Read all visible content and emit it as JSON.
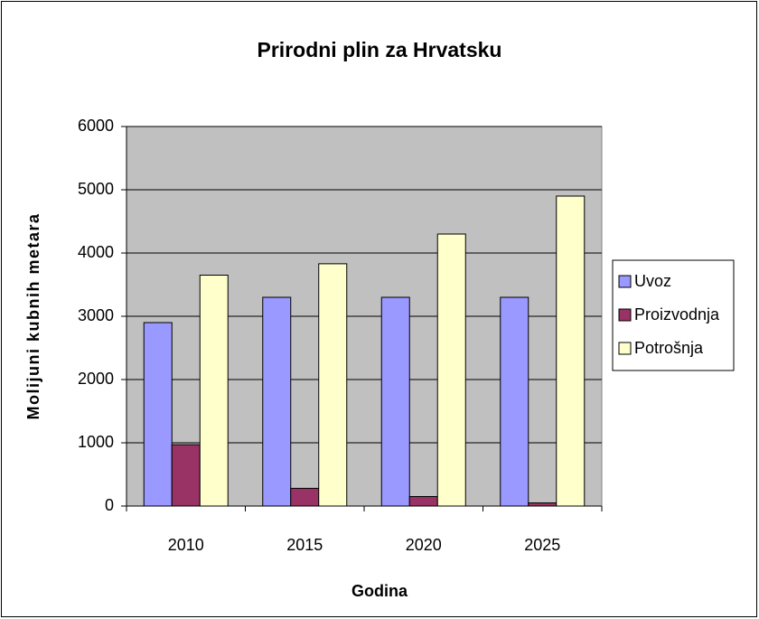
{
  "chart_data": {
    "type": "bar",
    "title": "Prirodni plin za Hrvatsku",
    "x_label": "Godina",
    "y_label": "Molijuni kubnih metara",
    "categories": [
      "2010",
      "2015",
      "2020",
      "2025"
    ],
    "series": [
      {
        "name": "Uvoz",
        "color": "#9999ff",
        "values": [
          2900,
          3300,
          3300,
          3300
        ]
      },
      {
        "name": "Proizvodnja",
        "color": "#993366",
        "values": [
          970,
          280,
          150,
          50
        ]
      },
      {
        "name": "Potrošnja",
        "color": "#ffffcc",
        "values": [
          3650,
          3830,
          4300,
          4900
        ]
      }
    ],
    "ylim": [
      0,
      6000
    ],
    "yticks": [
      0,
      1000,
      2000,
      3000,
      4000,
      5000,
      6000
    ],
    "grid": true,
    "legend": "right"
  }
}
